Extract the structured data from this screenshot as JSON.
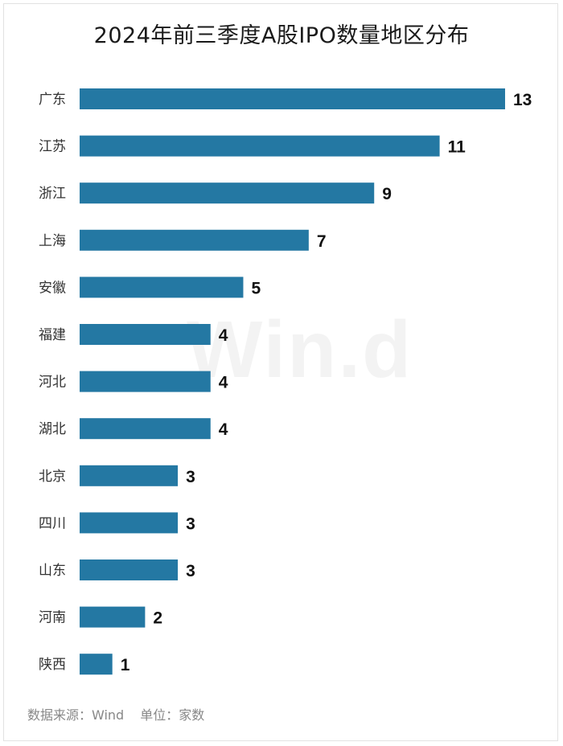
{
  "chart_data": {
    "type": "bar",
    "orientation": "horizontal",
    "title": "2024年前三季度A股IPO数量地区分布",
    "categories": [
      "广东",
      "江苏",
      "浙江",
      "上海",
      "安徽",
      "福建",
      "河北",
      "湖北",
      "北京",
      "四川",
      "山东",
      "河南",
      "陕西"
    ],
    "values": [
      13,
      11,
      9,
      7,
      5,
      4,
      4,
      4,
      3,
      3,
      3,
      2,
      1
    ],
    "xlim": [
      0,
      13
    ],
    "grid": false,
    "legend": "none",
    "bar_color": "#2478a3"
  },
  "watermark": "Win.d",
  "footer": {
    "source": "数据来源：Wind",
    "unit": "单位：家数"
  }
}
